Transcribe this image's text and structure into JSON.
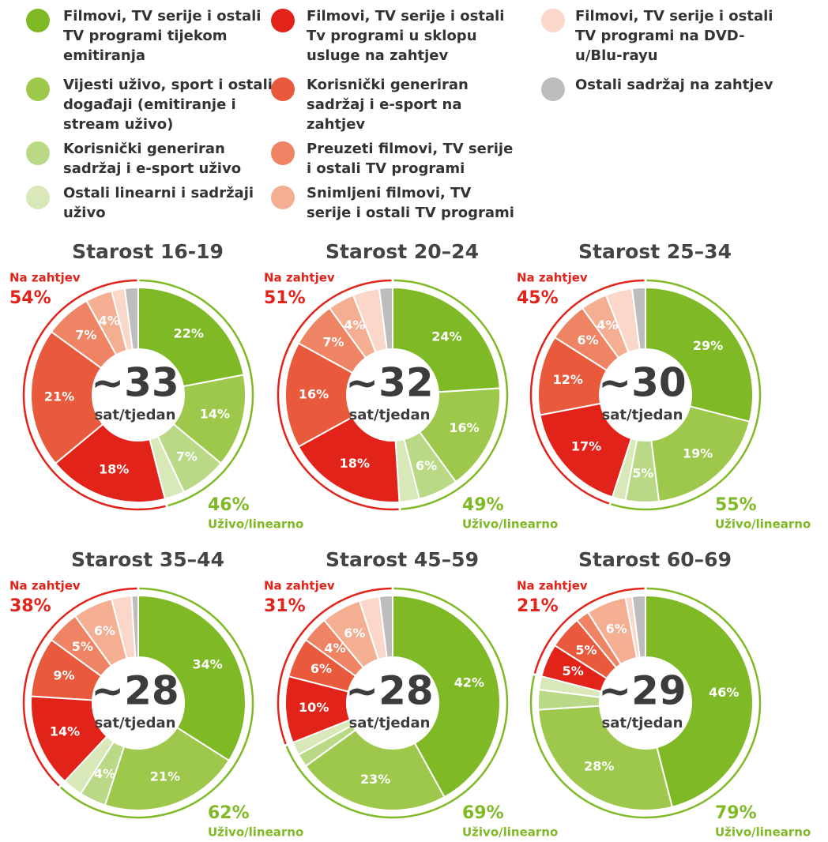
{
  "legend": [
    {
      "name": "Filmovi, TV serije i ostali TV programi tijekom emitiranja",
      "color": "#7fba26"
    },
    {
      "name": "Vijesti uživo, sport i ostali događaji (emitiranje i stream uživo)",
      "color": "#9dc84c"
    },
    {
      "name": "Korisnički generiran sadržaj i e-sport uživo",
      "color": "#bad987"
    },
    {
      "name": "Ostali linearni i sadržaji uživo",
      "color": "#d8e8b8"
    },
    {
      "name": "Filmovi, TV serije i ostali Tv programi u sklopu usluge na zahtjev",
      "color": "#e2231a"
    },
    {
      "name": "Korisnički generiran sadržaj i e-sport na zahtjev",
      "color": "#e85a3b"
    },
    {
      "name": "Preuzeti filmovi, TV serije i ostali TV programi",
      "color": "#ee8463"
    },
    {
      "name": "Snimljeni filmovi, TV serije i ostali TV programi",
      "color": "#f4ae92"
    },
    {
      "name": "Filmovi, TV serije i ostali TV programi na DVD-u/Blu-rayu",
      "color": "#fad7c8"
    },
    {
      "name": "Ostali sadržaj na zahtjev",
      "color": "#bdbdbd"
    }
  ],
  "chart_data": [
    {
      "type": "donut",
      "title": "Starost 16-19",
      "center_label": "~33",
      "center_unit": "sat/tjedan",
      "values": [
        22,
        14,
        7,
        3,
        18,
        21,
        7,
        4,
        2,
        2
      ],
      "value_labels": [
        "22%",
        "14%",
        "7%",
        null,
        "18%",
        "21%",
        "7%",
        "4%",
        null,
        null
      ],
      "on_demand": {
        "label": "Na zahtjev",
        "value": 54,
        "value_label": "54%"
      },
      "live": {
        "label": "Uživo/linearno",
        "value": 46,
        "value_label": "46%"
      }
    },
    {
      "type": "donut",
      "title": "Starost 20–24",
      "center_label": "~32",
      "center_unit": "sat/tjedan",
      "values": [
        24,
        16,
        6,
        3,
        18,
        16,
        7,
        4,
        4,
        2
      ],
      "value_labels": [
        "24%",
        "16%",
        "6%",
        null,
        "18%",
        "16%",
        "7%",
        "4%",
        null,
        null
      ],
      "on_demand": {
        "label": "Na zahtjev",
        "value": 51,
        "value_label": "51%"
      },
      "live": {
        "label": "Uživo/linearno",
        "value": 49,
        "value_label": "49%"
      }
    },
    {
      "type": "donut",
      "title": "Starost 25–34",
      "center_label": "~30",
      "center_unit": "sat/tjedan",
      "values": [
        29,
        19,
        5,
        2,
        17,
        12,
        6,
        4,
        4,
        2
      ],
      "value_labels": [
        "29%",
        "19%",
        "5%",
        null,
        "17%",
        "12%",
        "6%",
        "4%",
        null,
        null
      ],
      "on_demand": {
        "label": "Na zahtjev",
        "value": 45,
        "value_label": "45%"
      },
      "live": {
        "label": "Uživo/linearno",
        "value": 55,
        "value_label": "55%"
      }
    },
    {
      "type": "donut",
      "title": "Starost 35–44",
      "center_label": "~28",
      "center_unit": "sat/tjedan",
      "values": [
        34,
        21,
        4,
        3,
        14,
        9,
        5,
        6,
        3,
        1
      ],
      "value_labels": [
        "34%",
        "21%",
        "4%",
        null,
        "14%",
        "9%",
        "5%",
        "6%",
        null,
        null
      ],
      "on_demand": {
        "label": "Na zahtjev",
        "value": 38,
        "value_label": "38%"
      },
      "live": {
        "label": "Uživo/linearno",
        "value": 62,
        "value_label": "62%"
      }
    },
    {
      "type": "donut",
      "title": "Starost 45–59",
      "center_label": "~28",
      "center_unit": "sat/tjedan",
      "values": [
        42,
        23,
        2,
        2,
        10,
        6,
        4,
        6,
        3,
        2
      ],
      "value_labels": [
        "42%",
        "23%",
        null,
        null,
        "10%",
        "6%",
        "4%",
        "6%",
        null,
        null
      ],
      "on_demand": {
        "label": "Na zahtjev",
        "value": 31,
        "value_label": "31%"
      },
      "live": {
        "label": "Uživo/linearno",
        "value": 69,
        "value_label": "69%"
      }
    },
    {
      "type": "donut",
      "title": "Starost 60–69",
      "center_label": "~29",
      "center_unit": "sat/tjedan",
      "values": [
        46,
        28,
        3,
        2,
        5,
        5,
        2,
        6,
        1,
        2
      ],
      "value_labels": [
        "46%",
        "28%",
        null,
        null,
        "5%",
        "5%",
        null,
        "6%",
        null,
        null
      ],
      "on_demand": {
        "label": "Na zahtjev",
        "value": 21,
        "value_label": "21%"
      },
      "live": {
        "label": "Uživo/linearno",
        "value": 79,
        "value_label": "79%"
      }
    }
  ]
}
